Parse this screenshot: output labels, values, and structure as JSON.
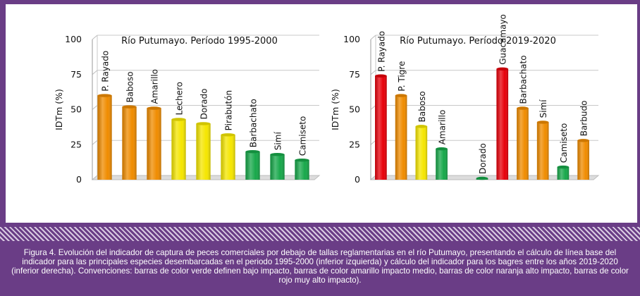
{
  "chart_data": [
    {
      "type": "bar",
      "title": "Río Putumayo. Período 1995-2000",
      "ylabel": "IDTm (%)",
      "ylim": [
        0,
        100
      ],
      "yticks": [
        "0",
        "25",
        "50",
        "75",
        "100"
      ],
      "grid": true,
      "categories": [
        "P. Rayado",
        "Baboso",
        "Amarillo",
        "Lechero",
        "Dorado",
        "Pirabutón",
        "Barbachato",
        "Simí",
        "Camiseto"
      ],
      "values": [
        60,
        52,
        51,
        43,
        40,
        32,
        20,
        18,
        14
      ],
      "colors": [
        "#f08c00",
        "#f08c00",
        "#f08c00",
        "#f5e600",
        "#f5e600",
        "#f5e600",
        "#17a84a",
        "#17a84a",
        "#17a84a"
      ]
    },
    {
      "type": "bar",
      "title": "Río Putumayo. Período 2019-2020",
      "ylabel": "IDTm (%)",
      "ylim": [
        0,
        100
      ],
      "yticks": [
        "0",
        "25",
        "50",
        "75",
        "100"
      ],
      "grid": true,
      "categories": [
        "P. Rayado",
        "P. Tigre",
        "Baboso",
        "Amarillo",
        "",
        "Dorado",
        "Guacamayo",
        "Barbachato",
        "Simí",
        "Camiseto",
        "Barbudo"
      ],
      "values": [
        74,
        60,
        38,
        22,
        null,
        1,
        79,
        51,
        41,
        9,
        28
      ],
      "colors": [
        "#e8000a",
        "#f08c00",
        "#f5e600",
        "#17a84a",
        "",
        "#17a84a",
        "#e8000a",
        "#f08c00",
        "#f08c00",
        "#17a84a",
        "#f08c00"
      ]
    }
  ],
  "caption": "Figura 4.  Evolución del indicador de captura de peces comerciales por debajo de tallas reglamentarias en el río Putumayo, presentando el cálculo de línea base del indicador para las principales especies desembarcadas en el periodo 1995-2000 (inferior izquierda) y cálculo del indicador para los bagres entre los años 2019-2020 (inferior derecha). Convenciones: barras de color verde definen bajo impacto, barras de color amarillo impacto medio, barras de color naranja alto impacto, barras de color rojo muy alto impacto)."
}
